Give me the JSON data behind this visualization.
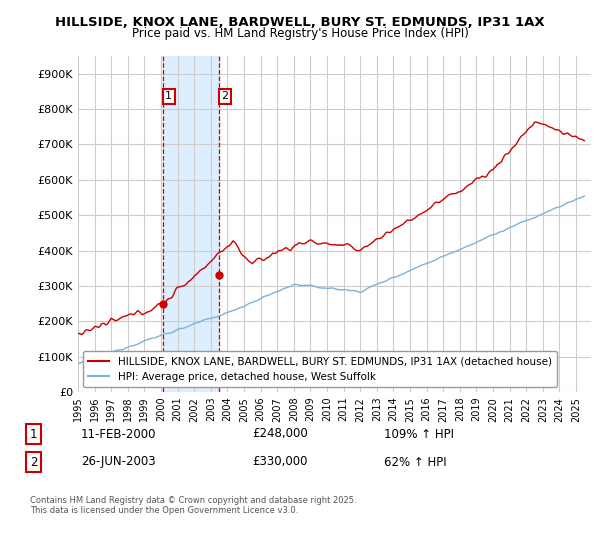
{
  "title": "HILLSIDE, KNOX LANE, BARDWELL, BURY ST. EDMUNDS, IP31 1AX",
  "subtitle": "Price paid vs. HM Land Registry's House Price Index (HPI)",
  "hpi_label": "HPI: Average price, detached house, West Suffolk",
  "property_label": "HILLSIDE, KNOX LANE, BARDWELL, BURY ST. EDMUNDS, IP31 1AX (detached house)",
  "footnote": "Contains HM Land Registry data © Crown copyright and database right 2025.\nThis data is licensed under the Open Government Licence v3.0.",
  "sale1_label": "11-FEB-2000",
  "sale1_price": "£248,000",
  "sale1_hpi": "109% ↑ HPI",
  "sale2_label": "26-JUN-2003",
  "sale2_price": "£330,000",
  "sale2_hpi": "62% ↑ HPI",
  "hpi_color": "#7ab4d8",
  "property_color": "#cc0000",
  "sale_marker_color": "#cc0000",
  "background_color": "#ffffff",
  "grid_color": "#cccccc",
  "highlight_color": "#ddeeff",
  "ylim_min": 0,
  "ylim_max": 950000,
  "yticks": [
    0,
    100000,
    200000,
    300000,
    400000,
    500000,
    600000,
    700000,
    800000,
    900000
  ],
  "ytick_labels": [
    "£0",
    "£100K",
    "£200K",
    "£300K",
    "£400K",
    "£500K",
    "£600K",
    "£700K",
    "£800K",
    "£900K"
  ],
  "sale1_x": 2000.11,
  "sale1_y": 248000,
  "sale2_x": 2003.49,
  "sale2_y": 330000,
  "highlight_x1": 2000.11,
  "highlight_x2": 2003.49,
  "xmin": 1995.0,
  "xmax": 2025.9
}
